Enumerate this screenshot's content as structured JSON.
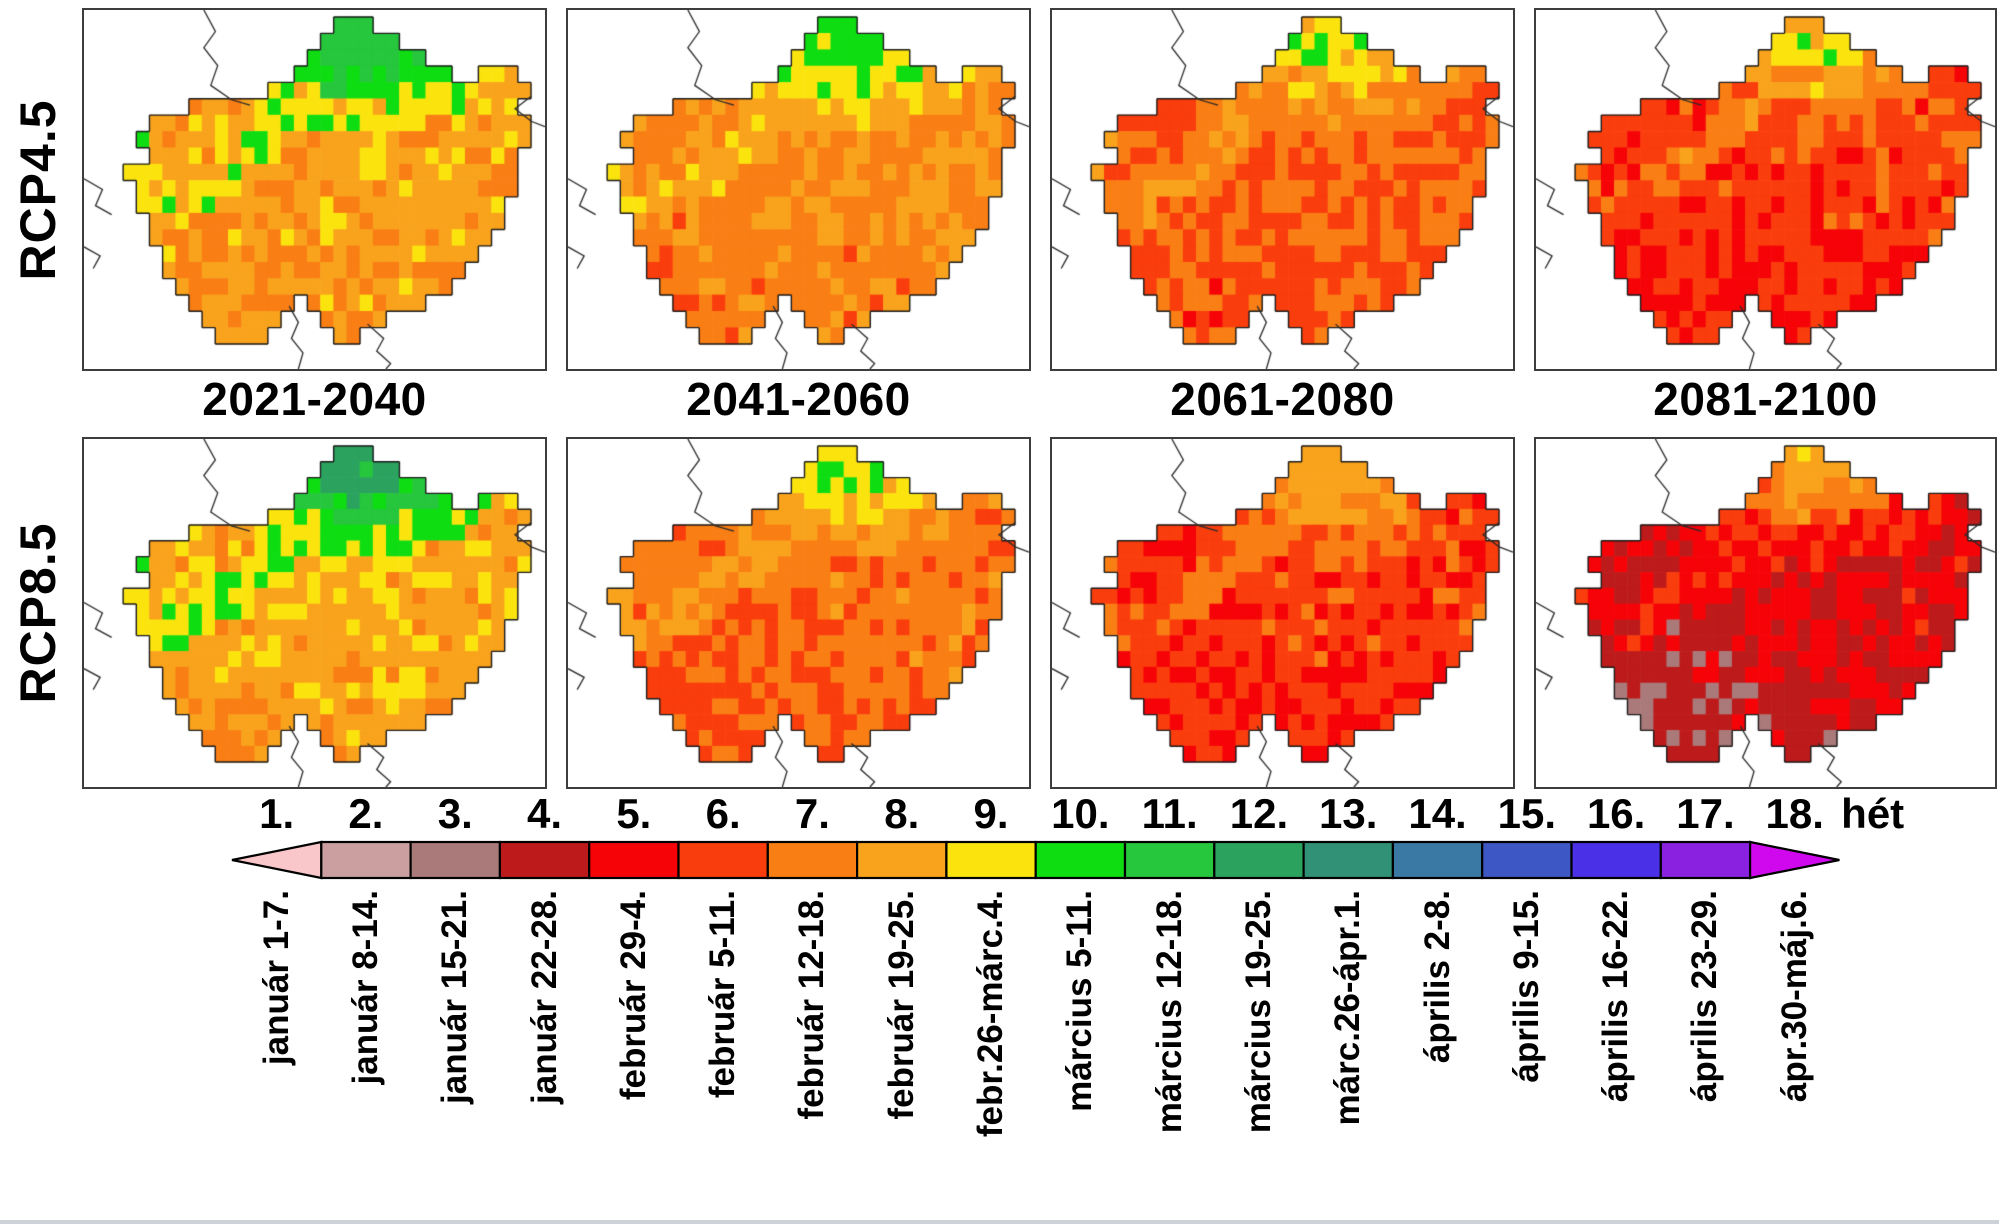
{
  "chart_data": {
    "type": "heatmap",
    "title": "",
    "description": "Projected week of occurrence over Hungary on a raster grid, for two climate scenarios and four future periods; cell colors give the week number (1-18) of the year window january 1 - may 6.",
    "rows": [
      "RCP4.5",
      "RCP8.5"
    ],
    "columns": [
      "2021-2040",
      "2041-2060",
      "2061-2080",
      "2081-2100"
    ],
    "unit_label": "hét",
    "legend": [
      {
        "week": "1.",
        "dates": "január 1-7.",
        "color": "#f9c7c9",
        "shape": "arrow-left"
      },
      {
        "week": "2.",
        "dates": "január 8-14.",
        "color": "#cb9fa0",
        "shape": "box"
      },
      {
        "week": "3.",
        "dates": "január 15-21.",
        "color": "#aa7a7a",
        "shape": "box"
      },
      {
        "week": "4.",
        "dates": "január 22-28.",
        "color": "#bd1b1b",
        "shape": "box"
      },
      {
        "week": "5.",
        "dates": "február 29-4.",
        "color": "#f60308",
        "shape": "box"
      },
      {
        "week": "6.",
        "dates": "február 5-11.",
        "color": "#fa3d0c",
        "shape": "box"
      },
      {
        "week": "7.",
        "dates": "február 12-18.",
        "color": "#f97e14",
        "shape": "box"
      },
      {
        "week": "8.",
        "dates": "február 19-25.",
        "color": "#f9a31c",
        "shape": "box"
      },
      {
        "week": "9.",
        "dates": "febr.26-márc.4.",
        "color": "#fbe40e",
        "shape": "box"
      },
      {
        "week": "10.",
        "dates": "március 5-11.",
        "color": "#0edd12",
        "shape": "box"
      },
      {
        "week": "11.",
        "dates": "március 12-18.",
        "color": "#26c63d",
        "shape": "box"
      },
      {
        "week": "12.",
        "dates": "március 19-25.",
        "color": "#2ba35f",
        "shape": "box"
      },
      {
        "week": "13.",
        "dates": "márc.26-ápr.1.",
        "color": "#309177",
        "shape": "box"
      },
      {
        "week": "14.",
        "dates": "április 2-8.",
        "color": "#3a79a4",
        "shape": "box"
      },
      {
        "week": "15.",
        "dates": "április 9-15.",
        "color": "#3d58c4",
        "shape": "box"
      },
      {
        "week": "16.",
        "dates": "április 16-22.",
        "color": "#4a30e6",
        "shape": "box"
      },
      {
        "week": "17.",
        "dates": "április 23-29.",
        "color": "#8a21e0",
        "shape": "box"
      },
      {
        "week": "18.",
        "dates": "ápr.30-máj.6.",
        "color": "#d008ee",
        "shape": "arrow-right"
      }
    ],
    "panels": [
      {
        "scenario": "RCP4.5",
        "period": "2021-2040",
        "summary": "Lowlands week 7-8 (orange), yellow week-9 band mid-north, weeks 10-11 (green) over NE mountains; SW slightly earlier.",
        "week_field": {
          "lowland_base": 8.0,
          "mountain_gain": 1.15,
          "southwest_early": 0.3,
          "min": 6,
          "max": 11,
          "seed": 3
        }
      },
      {
        "scenario": "RCP4.5",
        "period": "2041-2060",
        "summary": "Mostly weeks 7-8, yellow week 9 in NE, only a few green week-10 cells at the northern rim; west and south week 6-7.",
        "week_field": {
          "lowland_base": 7.4,
          "mountain_gain": 0.9,
          "southwest_early": 0.35,
          "min": 5,
          "max": 10,
          "seed": 7
        }
      },
      {
        "scenario": "RCP4.5",
        "period": "2061-2080",
        "summary": "Weeks 6-7 dominate, amber week 8 toward NE, red week 5 patches in the south, rare green specks at the N tip.",
        "week_field": {
          "lowland_base": 6.6,
          "mountain_gain": 0.8,
          "southwest_early": 0.4,
          "min": 5,
          "max": 10,
          "seed": 11
        }
      },
      {
        "scenario": "RCP4.5",
        "period": "2081-2100",
        "summary": "Weeks 5-6 (red/orange-red) dominate, orange-amber NE band with a little yellow and 1-2 green cells at the N tip.",
        "week_field": {
          "lowland_base": 6.0,
          "mountain_gain": 0.95,
          "southwest_early": 0.45,
          "min": 4,
          "max": 10,
          "seed": 13
        }
      },
      {
        "scenario": "RCP8.5",
        "period": "2021-2040",
        "summary": "Large green weeks 10-12 area over the N/NE mountains, yellow week 9 band, amber-orange weeks 7-8 lowlands.",
        "week_field": {
          "lowland_base": 8.2,
          "mountain_gain": 1.3,
          "southwest_early": 0.35,
          "min": 6,
          "max": 12,
          "seed": 17
        }
      },
      {
        "scenario": "RCP8.5",
        "period": "2041-2060",
        "summary": "Weeks 6-7 lowlands, yellow week 9 with green week-10 cells in the NE, red week 5 in the south and southwest.",
        "week_field": {
          "lowland_base": 6.9,
          "mountain_gain": 0.85,
          "southwest_early": 0.55,
          "min": 5,
          "max": 10,
          "seed": 19
        }
      },
      {
        "scenario": "RCP8.5",
        "period": "2061-2080",
        "summary": "Red weeks 5-6 dominate, orange weeks 7-8 in the NE, dark-red week 4 patches in the south.",
        "week_field": {
          "lowland_base": 6.0,
          "mountain_gain": 0.8,
          "southwest_early": 0.6,
          "min": 4,
          "max": 8,
          "seed": 23
        }
      },
      {
        "scenario": "RCP8.5",
        "period": "2081-2100",
        "summary": "Dark red week 4 and red week 5 dominate; large mauve week-3 area in the SW/S; orange weeks 6-8 and a yellow cell at the NE tip.",
        "week_field": {
          "lowland_base": 4.8,
          "mountain_gain": 1.0,
          "southwest_early": 1.15,
          "min": 3,
          "max": 9,
          "seed": 29
        }
      }
    ],
    "map_shape": {
      "grid_cols": 32,
      "grid_rows": 20,
      "mask_runs": [
        [
          [
            17,
            19
          ]
        ],
        [
          [
            16,
            21
          ]
        ],
        [
          [
            15,
            23
          ]
        ],
        [
          [
            14,
            25
          ],
          [
            28,
            30
          ]
        ],
        [
          [
            12,
            31
          ]
        ],
        [
          [
            6,
            30
          ]
        ],
        [
          [
            3,
            31
          ]
        ],
        [
          [
            2,
            31
          ]
        ],
        [
          [
            3,
            30
          ]
        ],
        [
          [
            1,
            30
          ]
        ],
        [
          [
            2,
            30
          ]
        ],
        [
          [
            2,
            29
          ]
        ],
        [
          [
            3,
            29
          ]
        ],
        [
          [
            3,
            28
          ]
        ],
        [
          [
            4,
            27
          ]
        ],
        [
          [
            4,
            26
          ]
        ],
        [
          [
            5,
            25
          ]
        ],
        [
          [
            6,
            13
          ],
          [
            15,
            23
          ]
        ],
        [
          [
            7,
            12
          ],
          [
            16,
            20
          ]
        ],
        [
          [
            8,
            11
          ],
          [
            17,
            18
          ]
        ]
      ],
      "neighbor_border_lines": [
        [
          [
            0.26,
            0.0
          ],
          [
            0.285,
            0.06
          ],
          [
            0.26,
            0.105
          ],
          [
            0.29,
            0.155
          ],
          [
            0.275,
            0.21
          ],
          [
            0.32,
            0.25
          ],
          [
            0.36,
            0.265
          ]
        ],
        [
          [
            0.0,
            0.47
          ],
          [
            0.04,
            0.5
          ],
          [
            0.025,
            0.545
          ],
          [
            0.06,
            0.57
          ]
        ],
        [
          [
            0.0,
            0.66
          ],
          [
            0.035,
            0.685
          ],
          [
            0.02,
            0.72
          ]
        ],
        [
          [
            0.445,
            0.825
          ],
          [
            0.465,
            0.87
          ],
          [
            0.45,
            0.915
          ],
          [
            0.475,
            0.955
          ],
          [
            0.465,
            1.0
          ]
        ],
        [
          [
            0.615,
            0.875
          ],
          [
            0.65,
            0.915
          ],
          [
            0.635,
            0.95
          ],
          [
            0.665,
            0.985
          ],
          [
            0.655,
            1.0
          ]
        ],
        [
          [
            0.97,
            0.24
          ],
          [
            0.935,
            0.275
          ],
          [
            0.97,
            0.31
          ],
          [
            1.0,
            0.325
          ]
        ]
      ]
    },
    "colors": {
      "map_outline": "#1b1b1b",
      "panel_frame": "#3d3d3d",
      "legend_stroke": "#000000"
    }
  }
}
